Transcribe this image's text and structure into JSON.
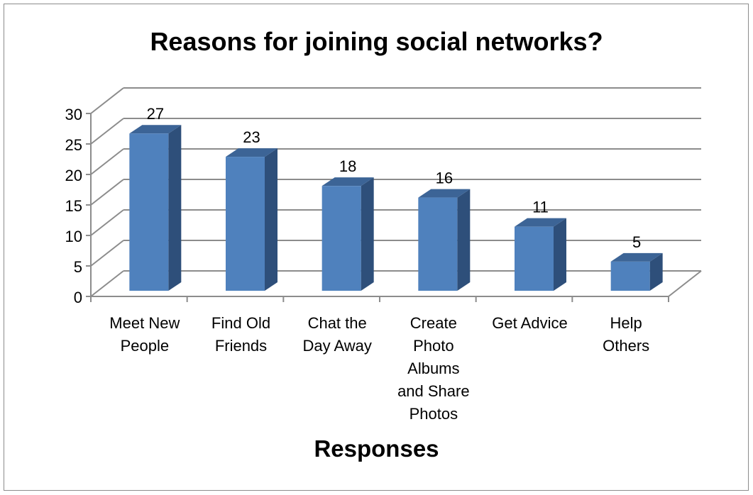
{
  "chart_data": {
    "type": "bar",
    "title": "Reasons for joining social networks?",
    "xlabel": "Responses",
    "ylabel": "",
    "categories": [
      [
        "Meet New",
        "People"
      ],
      [
        "Find Old",
        "Friends"
      ],
      [
        "Chat the",
        "Day Away"
      ],
      [
        "Create",
        "Photo",
        "Albums",
        "and Share",
        "Photos"
      ],
      [
        "Get Advice"
      ],
      [
        "Help",
        "Others"
      ]
    ],
    "values": [
      27,
      23,
      18,
      16,
      11,
      5
    ],
    "ylim": [
      0,
      30
    ],
    "yticks": [
      0,
      5,
      10,
      15,
      20,
      25,
      30
    ],
    "grid": true,
    "legend": "none",
    "data_labels": true,
    "style": "3d-column",
    "colors": {
      "bar_front": "#4f81bd",
      "bar_side": "#2e4f7a",
      "bar_top": "#3c6496",
      "grid": "#8c8c8c"
    }
  }
}
